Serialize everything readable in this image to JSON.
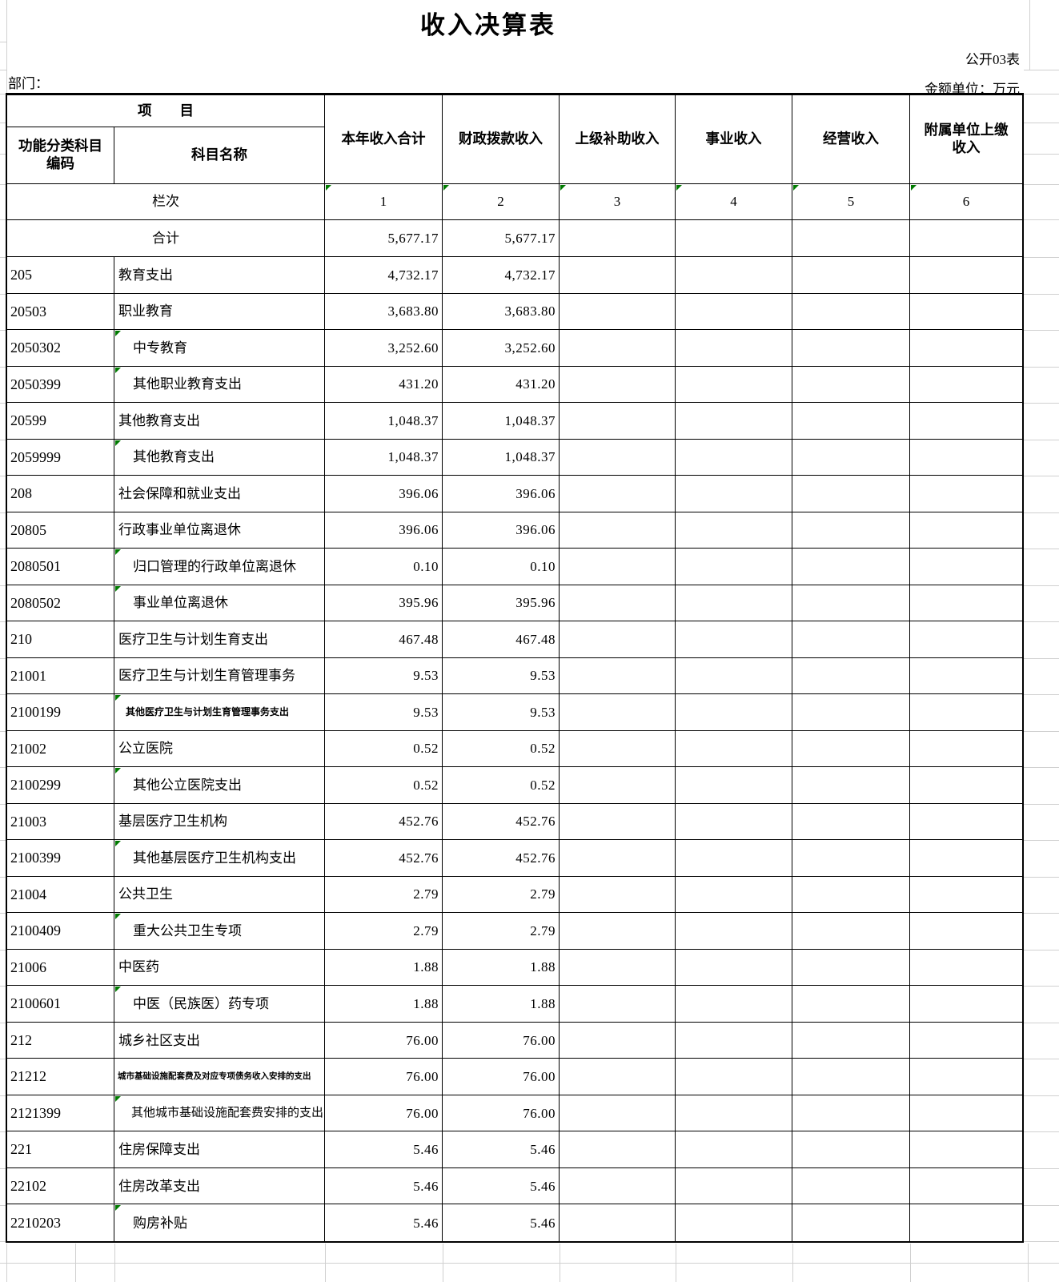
{
  "page": {
    "title": "收入决算表",
    "form_no": "公开03表",
    "department_label": "部门：",
    "unit_label": "金额单位：万元"
  },
  "colors": {
    "border_black": "#000000",
    "gridline_gray": "#d0d0d0",
    "error_flag_green": "#007a00"
  },
  "table": {
    "item_group_header": "项　　目",
    "code_header": "功能分类科目编码",
    "name_header": "科目名称",
    "value_headers": [
      "本年收入合计",
      "财政拨款收入",
      "上级补助收入",
      "事业收入",
      "经营收入",
      "附属单位上缴收入"
    ],
    "lane_label": "栏次",
    "lane_numbers": [
      "1",
      "2",
      "3",
      "4",
      "5",
      "6"
    ],
    "total_label": "合计",
    "total_values": [
      "5,677.17",
      "5,677.17",
      "",
      "",
      "",
      ""
    ],
    "rows": [
      {
        "code": "205",
        "name": "教育支出",
        "v1": "4,732.17",
        "v2": "4,732.17",
        "indent": false,
        "flag": false,
        "size": ""
      },
      {
        "code": "20503",
        "name": "职业教育",
        "v1": "3,683.80",
        "v2": "3,683.80",
        "indent": false,
        "flag": false,
        "size": ""
      },
      {
        "code": "2050302",
        "name": "中专教育",
        "v1": "3,252.60",
        "v2": "3,252.60",
        "indent": true,
        "flag": true,
        "size": ""
      },
      {
        "code": "2050399",
        "name": "其他职业教育支出",
        "v1": "431.20",
        "v2": "431.20",
        "indent": true,
        "flag": true,
        "size": ""
      },
      {
        "code": "20599",
        "name": "其他教育支出",
        "v1": "1,048.37",
        "v2": "1,048.37",
        "indent": false,
        "flag": false,
        "size": ""
      },
      {
        "code": "2059999",
        "name": "其他教育支出",
        "v1": "1,048.37",
        "v2": "1,048.37",
        "indent": true,
        "flag": true,
        "size": ""
      },
      {
        "code": "208",
        "name": "社会保障和就业支出",
        "v1": "396.06",
        "v2": "396.06",
        "indent": false,
        "flag": false,
        "size": ""
      },
      {
        "code": "20805",
        "name": "行政事业单位离退休",
        "v1": "396.06",
        "v2": "396.06",
        "indent": false,
        "flag": false,
        "size": ""
      },
      {
        "code": "2080501",
        "name": "归口管理的行政单位离退休",
        "v1": "0.10",
        "v2": "0.10",
        "indent": true,
        "flag": true,
        "size": ""
      },
      {
        "code": "2080502",
        "name": "事业单位离退休",
        "v1": "395.96",
        "v2": "395.96",
        "indent": true,
        "flag": true,
        "size": ""
      },
      {
        "code": "210",
        "name": "医疗卫生与计划生育支出",
        "v1": "467.48",
        "v2": "467.48",
        "indent": false,
        "flag": false,
        "size": ""
      },
      {
        "code": "21001",
        "name": "医疗卫生与计划生育管理事务",
        "v1": "9.53",
        "v2": "9.53",
        "indent": false,
        "flag": false,
        "size": ""
      },
      {
        "code": "2100199",
        "name": "其他医疗卫生与计划生育管理事务支出",
        "v1": "9.53",
        "v2": "9.53",
        "indent": true,
        "flag": true,
        "size": "s1"
      },
      {
        "code": "21002",
        "name": "公立医院",
        "v1": "0.52",
        "v2": "0.52",
        "indent": false,
        "flag": false,
        "size": ""
      },
      {
        "code": "2100299",
        "name": "其他公立医院支出",
        "v1": "0.52",
        "v2": "0.52",
        "indent": true,
        "flag": true,
        "size": ""
      },
      {
        "code": "21003",
        "name": "基层医疗卫生机构",
        "v1": "452.76",
        "v2": "452.76",
        "indent": false,
        "flag": false,
        "size": ""
      },
      {
        "code": "2100399",
        "name": "其他基层医疗卫生机构支出",
        "v1": "452.76",
        "v2": "452.76",
        "indent": true,
        "flag": true,
        "size": ""
      },
      {
        "code": "21004",
        "name": "公共卫生",
        "v1": "2.79",
        "v2": "2.79",
        "indent": false,
        "flag": false,
        "size": ""
      },
      {
        "code": "2100409",
        "name": "重大公共卫生专项",
        "v1": "2.79",
        "v2": "2.79",
        "indent": true,
        "flag": true,
        "size": ""
      },
      {
        "code": "21006",
        "name": "中医药",
        "v1": "1.88",
        "v2": "1.88",
        "indent": false,
        "flag": false,
        "size": ""
      },
      {
        "code": "2100601",
        "name": "中医（民族医）药专项",
        "v1": "1.88",
        "v2": "1.88",
        "indent": true,
        "flag": true,
        "size": ""
      },
      {
        "code": "212",
        "name": "城乡社区支出",
        "v1": "76.00",
        "v2": "76.00",
        "indent": false,
        "flag": false,
        "size": ""
      },
      {
        "code": "21212",
        "name": "城市基础设施配套费及对应专项债务收入安排的支出",
        "v1": "76.00",
        "v2": "76.00",
        "indent": false,
        "flag": false,
        "size": "s2"
      },
      {
        "code": "2121399",
        "name": "其他城市基础设施配套费安排的支出",
        "v1": "76.00",
        "v2": "76.00",
        "indent": true,
        "flag": true,
        "size": "tight"
      },
      {
        "code": "221",
        "name": "住房保障支出",
        "v1": "5.46",
        "v2": "5.46",
        "indent": false,
        "flag": false,
        "size": ""
      },
      {
        "code": "22102",
        "name": "住房改革支出",
        "v1": "5.46",
        "v2": "5.46",
        "indent": false,
        "flag": false,
        "size": ""
      },
      {
        "code": "2210203",
        "name": "购房补贴",
        "v1": "5.46",
        "v2": "5.46",
        "indent": true,
        "flag": true,
        "size": ""
      }
    ]
  }
}
